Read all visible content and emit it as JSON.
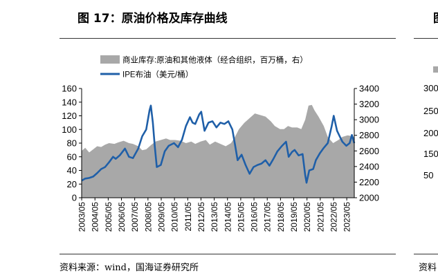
{
  "figure_title": "图 17：原油价格及库存曲线",
  "next_figure_title_fragment": "图",
  "source": "资料来源：wind，国海证券研究所",
  "next_source_fragment": "资料",
  "colors": {
    "inventory": "#a8a8a8",
    "brent": "#1f5fa8",
    "rule": "#333333"
  },
  "chart_data": {
    "type": "area+line",
    "legend_position": "top-left",
    "grid": false,
    "x_ticks": [
      "2003/05",
      "2004/05",
      "2005/05",
      "2006/05",
      "2007/05",
      "2008/05",
      "2009/05",
      "2010/05",
      "2011/05",
      "2012/05",
      "2013/05",
      "2014/05",
      "2015/05",
      "2016/05",
      "2017/05",
      "2018/05",
      "2019/05",
      "2020/05",
      "2021/05",
      "2022/05",
      "2023/05"
    ],
    "x_range": [
      2003.33,
      2023.9
    ],
    "left_axis": {
      "min": 0,
      "max": 160,
      "ticks": [
        "0",
        "20",
        "40",
        "60",
        "80",
        "100",
        "120",
        "140",
        "160"
      ]
    },
    "right_axis": {
      "min": 2000,
      "max": 3400,
      "ticks": [
        "2000",
        "2200",
        "2400",
        "2600",
        "2800",
        "3000",
        "3200",
        "3400"
      ]
    },
    "series": [
      {
        "name": "商业库存:原油和其他液体（经合组织，百万桶，右）",
        "type": "area",
        "axis": "right",
        "points": [
          [
            2003.33,
            2600
          ],
          [
            2003.6,
            2640
          ],
          [
            2003.9,
            2580
          ],
          [
            2004.2,
            2620
          ],
          [
            2004.5,
            2660
          ],
          [
            2004.8,
            2650
          ],
          [
            2005.1,
            2680
          ],
          [
            2005.4,
            2700
          ],
          [
            2005.8,
            2690
          ],
          [
            2006.1,
            2710
          ],
          [
            2006.5,
            2730
          ],
          [
            2006.9,
            2700
          ],
          [
            2007.2,
            2690
          ],
          [
            2007.6,
            2660
          ],
          [
            2007.9,
            2610
          ],
          [
            2008.2,
            2620
          ],
          [
            2008.6,
            2680
          ],
          [
            2008.9,
            2720
          ],
          [
            2009.3,
            2740
          ],
          [
            2009.7,
            2760
          ],
          [
            2010.0,
            2740
          ],
          [
            2010.4,
            2740
          ],
          [
            2010.8,
            2730
          ],
          [
            2011.2,
            2700
          ],
          [
            2011.6,
            2720
          ],
          [
            2011.9,
            2690
          ],
          [
            2012.3,
            2720
          ],
          [
            2012.7,
            2740
          ],
          [
            2013.0,
            2680
          ],
          [
            2013.4,
            2720
          ],
          [
            2013.8,
            2690
          ],
          [
            2014.2,
            2660
          ],
          [
            2014.6,
            2700
          ],
          [
            2014.9,
            2780
          ],
          [
            2015.2,
            2880
          ],
          [
            2015.6,
            2960
          ],
          [
            2016.0,
            3020
          ],
          [
            2016.4,
            3080
          ],
          [
            2016.8,
            3060
          ],
          [
            2017.2,
            3040
          ],
          [
            2017.6,
            2980
          ],
          [
            2017.9,
            2920
          ],
          [
            2018.3,
            2880
          ],
          [
            2018.6,
            2880
          ],
          [
            2018.9,
            2920
          ],
          [
            2019.2,
            2900
          ],
          [
            2019.6,
            2900
          ],
          [
            2019.9,
            2880
          ],
          [
            2020.2,
            3000
          ],
          [
            2020.45,
            3180
          ],
          [
            2020.7,
            3190
          ],
          [
            2020.9,
            3120
          ],
          [
            2021.2,
            3040
          ],
          [
            2021.6,
            2920
          ],
          [
            2021.9,
            2780
          ],
          [
            2022.3,
            2700
          ],
          [
            2022.7,
            2740
          ],
          [
            2023.0,
            2780
          ],
          [
            2023.4,
            2800
          ],
          [
            2023.7,
            2790
          ],
          [
            2023.9,
            2780
          ]
        ]
      },
      {
        "name": "IPE布油（美元/桶）",
        "type": "line",
        "axis": "left",
        "points": [
          [
            2003.33,
            25
          ],
          [
            2003.6,
            28
          ],
          [
            2003.9,
            29
          ],
          [
            2004.2,
            31
          ],
          [
            2004.5,
            36
          ],
          [
            2004.8,
            42
          ],
          [
            2005.1,
            45
          ],
          [
            2005.4,
            52
          ],
          [
            2005.7,
            60
          ],
          [
            2005.9,
            57
          ],
          [
            2006.2,
            62
          ],
          [
            2006.6,
            72
          ],
          [
            2006.9,
            60
          ],
          [
            2007.2,
            58
          ],
          [
            2007.6,
            72
          ],
          [
            2007.9,
            90
          ],
          [
            2008.2,
            100
          ],
          [
            2008.45,
            128
          ],
          [
            2008.55,
            135
          ],
          [
            2008.7,
            110
          ],
          [
            2008.85,
            75
          ],
          [
            2009.0,
            45
          ],
          [
            2009.3,
            48
          ],
          [
            2009.6,
            68
          ],
          [
            2009.9,
            76
          ],
          [
            2010.3,
            80
          ],
          [
            2010.6,
            74
          ],
          [
            2010.9,
            85
          ],
          [
            2011.2,
            105
          ],
          [
            2011.5,
            118
          ],
          [
            2011.7,
            110
          ],
          [
            2011.9,
            108
          ],
          [
            2012.2,
            122
          ],
          [
            2012.35,
            126
          ],
          [
            2012.6,
            98
          ],
          [
            2012.9,
            110
          ],
          [
            2013.2,
            112
          ],
          [
            2013.5,
            103
          ],
          [
            2013.8,
            110
          ],
          [
            2014.1,
            108
          ],
          [
            2014.4,
            112
          ],
          [
            2014.7,
            100
          ],
          [
            2014.9,
            78
          ],
          [
            2015.1,
            55
          ],
          [
            2015.4,
            63
          ],
          [
            2015.7,
            48
          ],
          [
            2016.0,
            35
          ],
          [
            2016.3,
            45
          ],
          [
            2016.6,
            48
          ],
          [
            2016.9,
            50
          ],
          [
            2017.2,
            55
          ],
          [
            2017.5,
            47
          ],
          [
            2017.8,
            57
          ],
          [
            2018.1,
            68
          ],
          [
            2018.4,
            75
          ],
          [
            2018.75,
            82
          ],
          [
            2018.95,
            60
          ],
          [
            2019.2,
            67
          ],
          [
            2019.4,
            70
          ],
          [
            2019.7,
            62
          ],
          [
            2020.0,
            64
          ],
          [
            2020.2,
            33
          ],
          [
            2020.3,
            22
          ],
          [
            2020.5,
            40
          ],
          [
            2020.8,
            42
          ],
          [
            2021.0,
            55
          ],
          [
            2021.3,
            65
          ],
          [
            2021.6,
            73
          ],
          [
            2021.9,
            80
          ],
          [
            2022.2,
            105
          ],
          [
            2022.35,
            120
          ],
          [
            2022.6,
            98
          ],
          [
            2022.8,
            90
          ],
          [
            2023.0,
            82
          ],
          [
            2023.3,
            76
          ],
          [
            2023.55,
            80
          ],
          [
            2023.72,
            92
          ],
          [
            2023.9,
            80
          ]
        ]
      }
    ]
  }
}
